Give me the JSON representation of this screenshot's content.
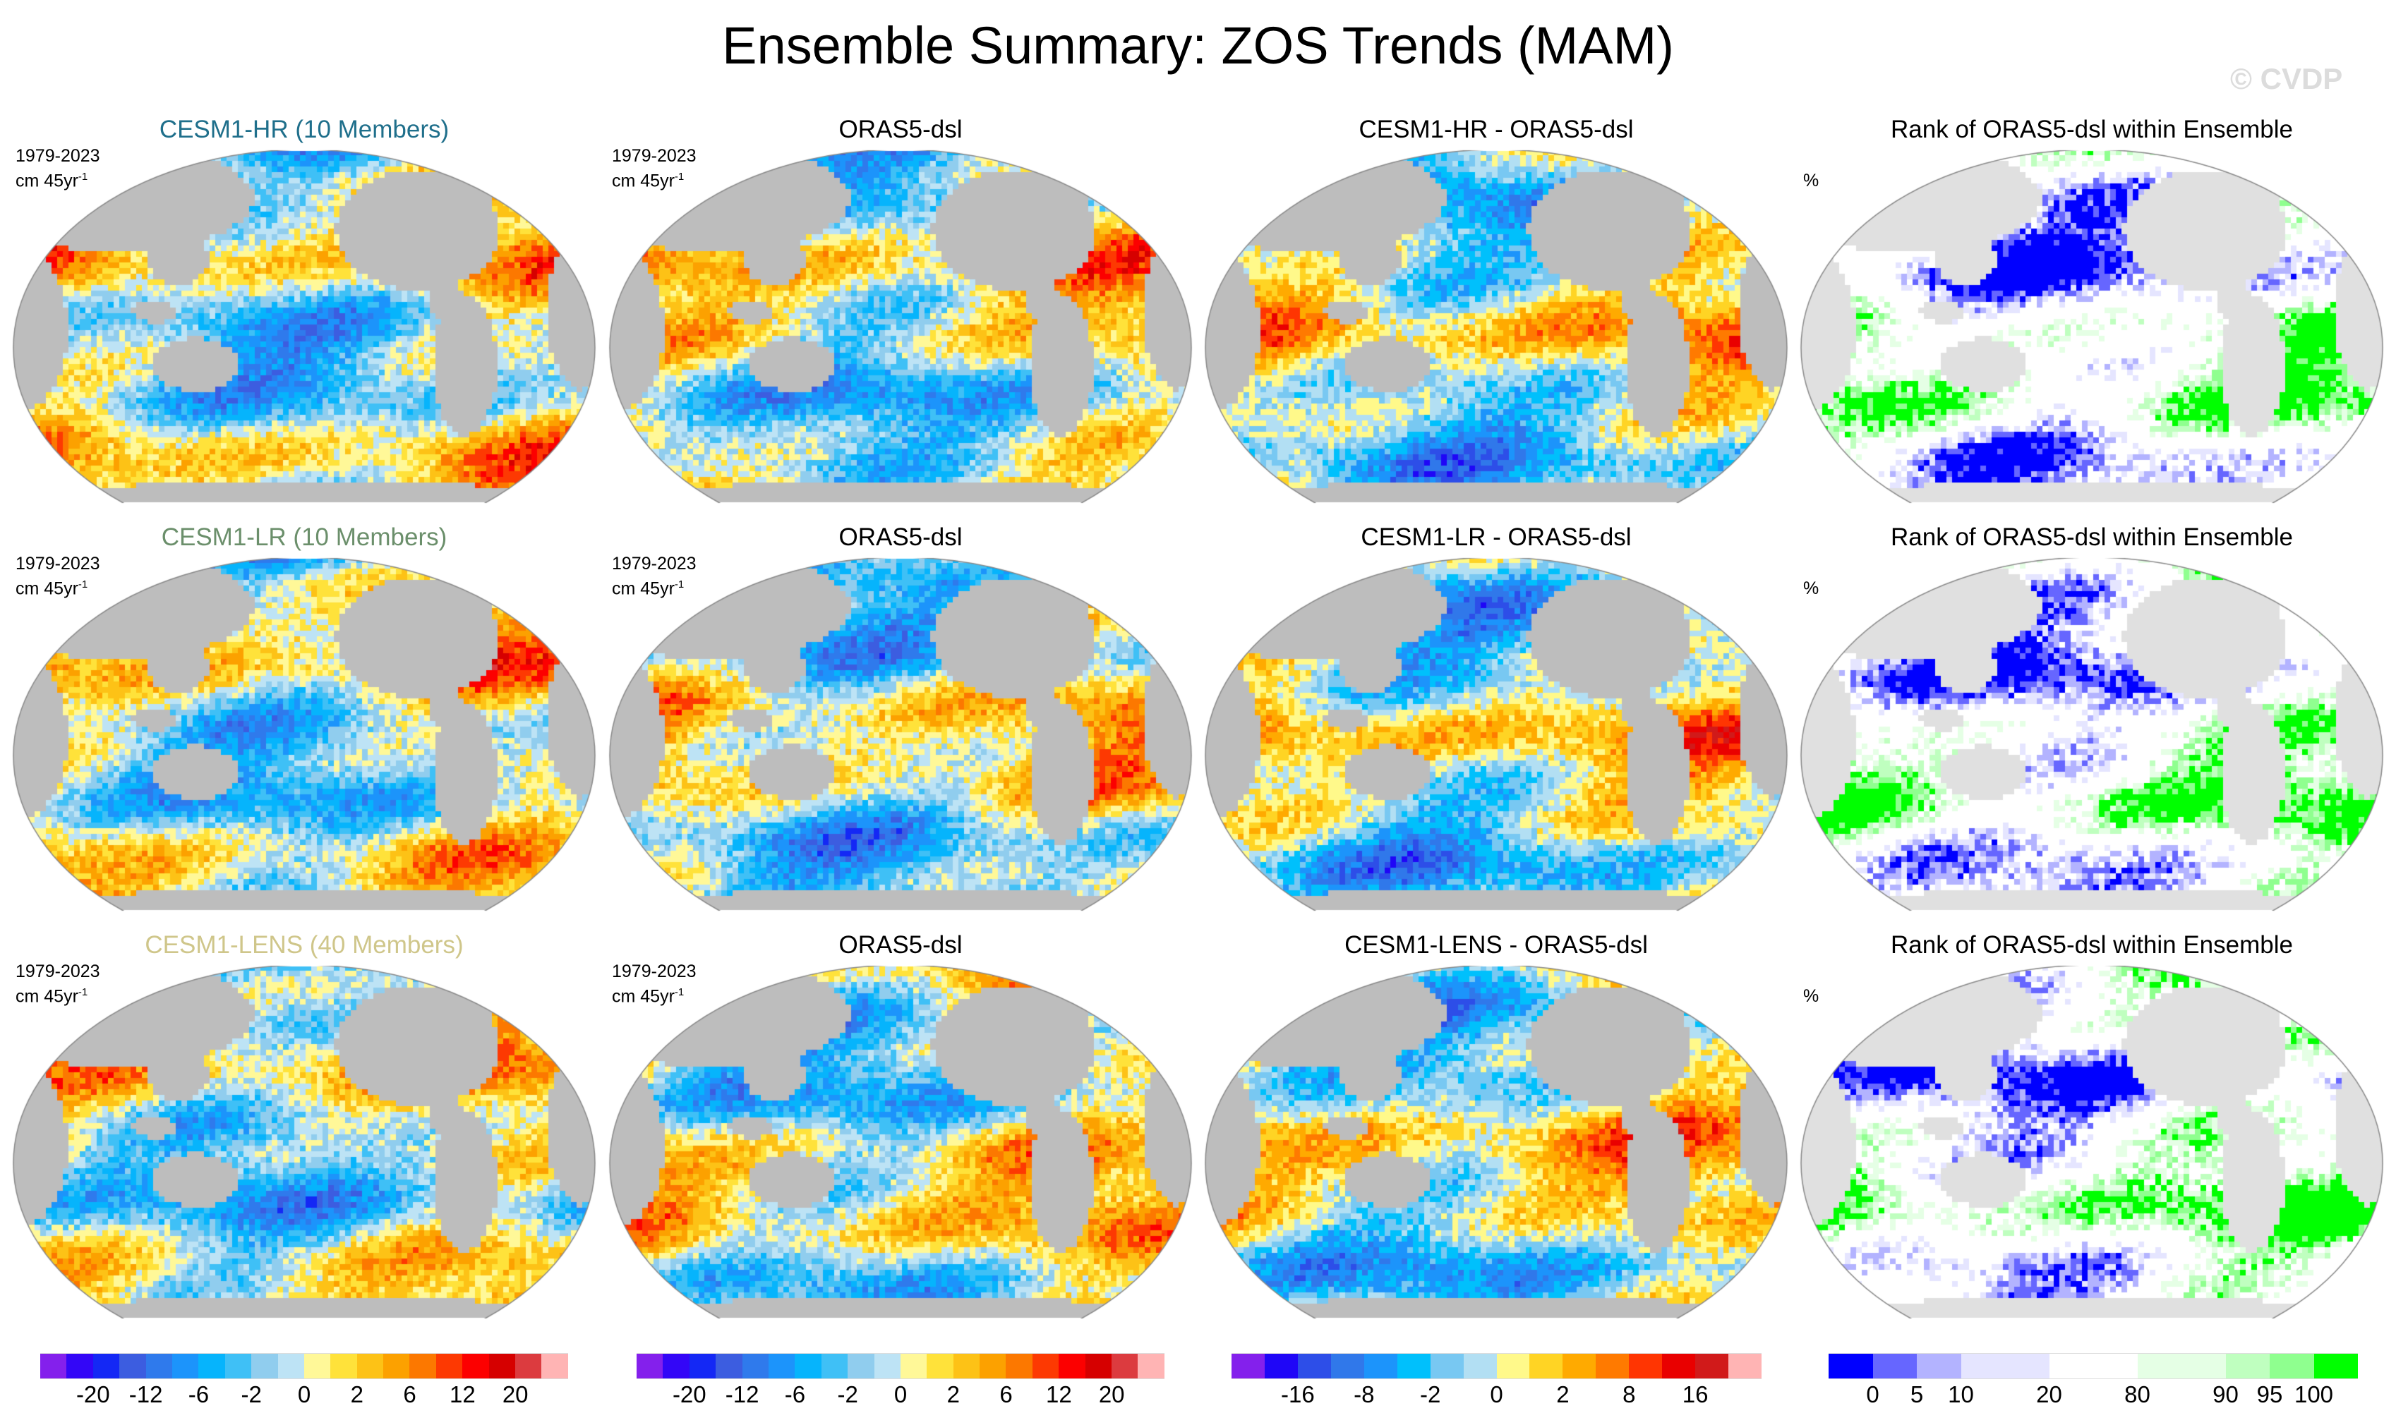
{
  "title": "Ensemble Summary: ZOS Trends (MAM)",
  "watermark": "© CVDP",
  "period": "1979-2023",
  "units": "cm 45yr",
  "units_sup": "-1",
  "rank_units": "%",
  "land_color": "#bdbdbd",
  "rank_land_color": "#e0e0e0",
  "rows": [
    {
      "panels": [
        {
          "title": "CESM1-HR (10 Members)",
          "title_color": "#1f6f8b",
          "kind": "trend"
        },
        {
          "title": "ORAS5-dsl",
          "title_color": "#000000",
          "kind": "trend"
        },
        {
          "title": "CESM1-HR - ORAS5-dsl",
          "title_color": "#000000",
          "kind": "diff"
        },
        {
          "title": "Rank of ORAS5-dsl within Ensemble",
          "title_color": "#000000",
          "kind": "rank"
        }
      ]
    },
    {
      "panels": [
        {
          "title": "CESM1-LR (10 Members)",
          "title_color": "#6b8f6b",
          "kind": "trend"
        },
        {
          "title": "ORAS5-dsl",
          "title_color": "#000000",
          "kind": "trend"
        },
        {
          "title": "CESM1-LR - ORAS5-dsl",
          "title_color": "#000000",
          "kind": "diff"
        },
        {
          "title": "Rank of ORAS5-dsl within Ensemble",
          "title_color": "#000000",
          "kind": "rank"
        }
      ]
    },
    {
      "panels": [
        {
          "title": "CESM1-LENS (40 Members)",
          "title_color": "#cfc68a",
          "kind": "trend"
        },
        {
          "title": "ORAS5-dsl",
          "title_color": "#000000",
          "kind": "trend"
        },
        {
          "title": "CESM1-LENS - ORAS5-dsl",
          "title_color": "#000000",
          "kind": "diff"
        },
        {
          "title": "Rank of ORAS5-dsl within Ensemble",
          "title_color": "#000000",
          "kind": "rank"
        }
      ]
    }
  ],
  "chart_data": [
    {
      "type": "heatmap",
      "name": "trend colorbar",
      "colors": [
        "#8420ec",
        "#3306f7",
        "#1428f5",
        "#3c5de0",
        "#2f7aec",
        "#1c94fb",
        "#06b4fc",
        "#3fc0f6",
        "#90cdee",
        "#bde3f5",
        "#fff898",
        "#ffe23a",
        "#fdc216",
        "#fca100",
        "#fc7800",
        "#fd3902",
        "#fc0000",
        "#d60000",
        "#dc3b3f",
        "#ffb4b4"
      ],
      "tick_labels": [
        "-20",
        "-12",
        "-6",
        "-2",
        "0",
        "2",
        "6",
        "12",
        "20"
      ],
      "tick_boundaries": [
        2,
        4,
        6,
        8,
        10,
        12,
        14,
        16,
        18
      ]
    },
    {
      "type": "heatmap",
      "name": "difference colorbar",
      "colors": [
        "#8420ec",
        "#1f06f7",
        "#2d4ee8",
        "#3078ea",
        "#1c94fb",
        "#00c0fc",
        "#78c8f2",
        "#b2dff3",
        "#fff98a",
        "#ffd424",
        "#ffaa00",
        "#ff7a00",
        "#ff3502",
        "#e90000",
        "#d11a1a",
        "#ffb4b4"
      ],
      "tick_labels": [
        "-16",
        "-8",
        "-2",
        "0",
        "2",
        "8",
        "16"
      ],
      "tick_boundaries": [
        2,
        4,
        6,
        8,
        10,
        12,
        14
      ]
    },
    {
      "type": "heatmap",
      "name": "rank colorbar",
      "colors": [
        "#0000ff",
        "#6666ff",
        "#b3b3ff",
        "#e5e5ff",
        "#ffffff",
        "#e5ffe5",
        "#bfffbf",
        "#8fff8f",
        "#00ff00"
      ],
      "bounds": [
        0,
        5,
        10,
        20,
        80,
        90,
        95,
        100
      ],
      "tick_labels": [
        "0",
        "5",
        "10",
        "20",
        "80",
        "90",
        "95",
        "100"
      ]
    }
  ]
}
